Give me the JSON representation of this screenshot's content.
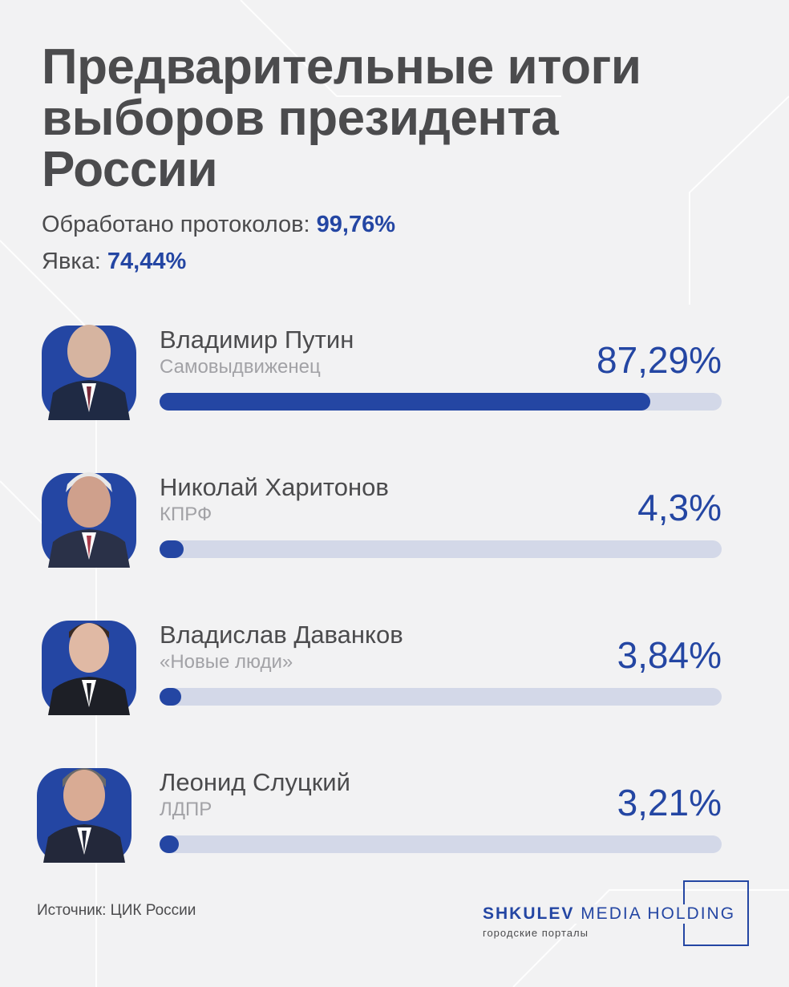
{
  "header": {
    "title_lines": [
      "Предварительные итоги",
      "выборов президента",
      "России"
    ],
    "protocols_label": "Обработано протоколов: ",
    "protocols_value": "99,76%",
    "turnout_label": "Явка: ",
    "turnout_value": "74,44%"
  },
  "chart_data": {
    "type": "bar",
    "orientation": "horizontal",
    "categories": [
      "Владимир Путин",
      "Николай Харитонов",
      "Владислав Даванков",
      "Леонид Слуцкий"
    ],
    "subtitles": [
      "Самовыдвиженец",
      "КПРФ",
      "«Новые люди»",
      "ЛДПР"
    ],
    "values": [
      87.29,
      4.3,
      3.84,
      3.21
    ],
    "value_labels": [
      "87,29%",
      "4,3%",
      "3,84%",
      "3,21%"
    ],
    "xlim": [
      0,
      100
    ],
    "bar_color": "#2446a3",
    "track_color": "#d3d8e8"
  },
  "footer": {
    "source": "Источник: ЦИК России",
    "logo_brand": "SHKULEV",
    "logo_rest": " MEDIA HOLDING",
    "logo_sub": "городские порталы"
  },
  "colors": {
    "accent": "#2446a3",
    "text": "#4b4b4d",
    "muted": "#a2a2a6",
    "background": "#f2f2f3"
  }
}
